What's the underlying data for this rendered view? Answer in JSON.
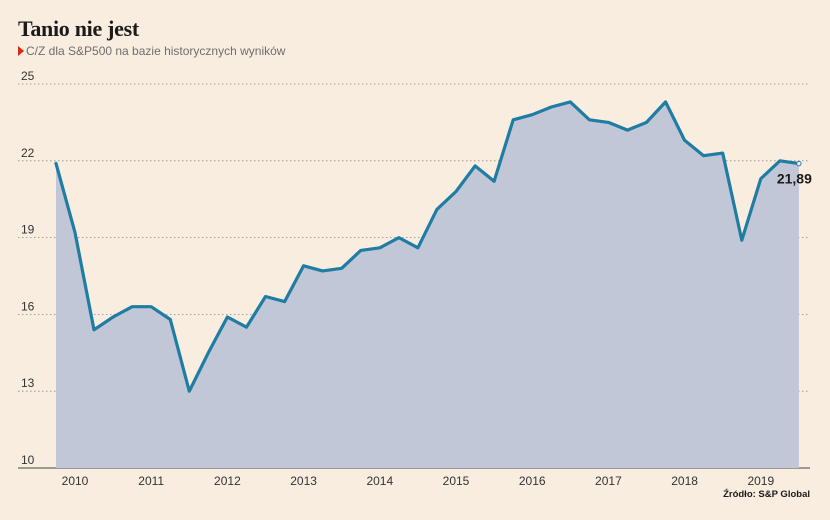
{
  "chart_data": {
    "type": "area",
    "title": "Tanio nie jest",
    "subtitle": "C/Z dla S&P500 na bazie historycznych wyników",
    "ylim": [
      10,
      25
    ],
    "yticks": [
      10,
      13,
      16,
      19,
      22,
      25
    ],
    "x_tick_labels": [
      "2010",
      "2011",
      "2012",
      "2013",
      "2014",
      "2015",
      "2016",
      "2017",
      "2018",
      "2019"
    ],
    "x": [
      2009.75,
      2010.0,
      2010.25,
      2010.5,
      2010.75,
      2011.0,
      2011.25,
      2011.5,
      2011.75,
      2012.0,
      2012.25,
      2012.5,
      2012.75,
      2013.0,
      2013.25,
      2013.5,
      2013.75,
      2014.0,
      2014.25,
      2014.5,
      2014.75,
      2015.0,
      2015.25,
      2015.5,
      2015.75,
      2016.0,
      2016.25,
      2016.5,
      2016.75,
      2017.0,
      2017.25,
      2017.5,
      2017.75,
      2018.0,
      2018.25,
      2018.5,
      2018.75,
      2019.0,
      2019.25,
      2019.5
    ],
    "values": [
      21.9,
      19.2,
      15.4,
      15.9,
      16.3,
      16.3,
      15.8,
      13.0,
      14.5,
      15.9,
      15.5,
      16.7,
      16.5,
      17.9,
      17.7,
      17.8,
      18.5,
      18.6,
      19.0,
      18.6,
      20.1,
      20.8,
      21.8,
      21.2,
      23.6,
      23.8,
      24.1,
      24.3,
      23.6,
      23.5,
      23.2,
      23.5,
      24.3,
      22.8,
      22.2,
      22.3,
      18.9,
      21.3,
      22.0,
      21.89
    ],
    "last_value_label": "21,89",
    "source": "Źródło: S&P Global",
    "colors": {
      "line": "#1f7ca3",
      "area": "#c1c7d6",
      "background": "#f9ede0",
      "grid": "#8a8a8a",
      "marker": "#e2241b"
    }
  }
}
